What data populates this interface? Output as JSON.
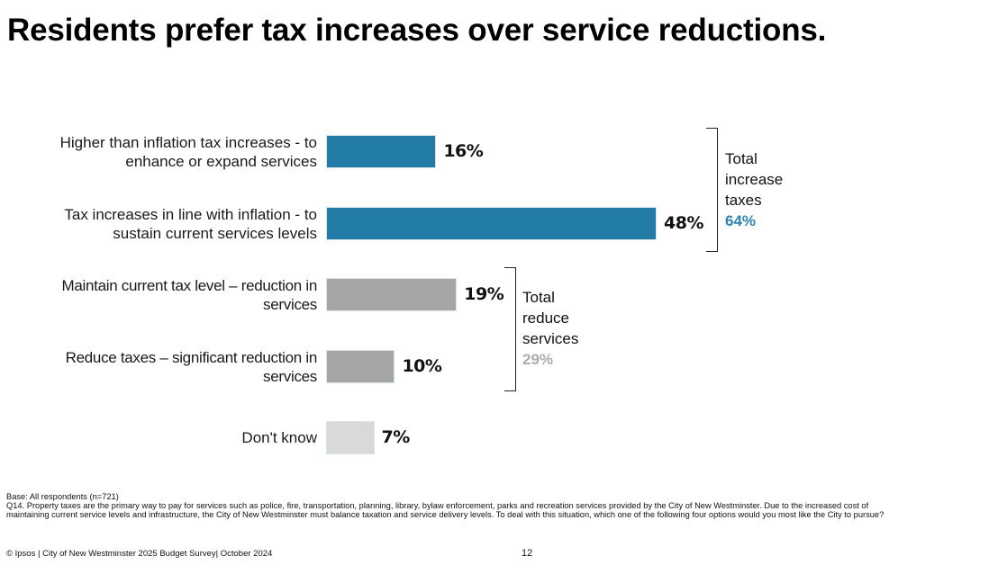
{
  "title": "Residents prefer tax increases over service reductions.",
  "colors": {
    "increase": "#237CA6",
    "reduce": "#A6A6A6",
    "dont_know": "#D9D9D9",
    "increase_total_text": "#2E84B0",
    "reduce_total_text": "#ABABAB"
  },
  "chart_data": {
    "type": "bar",
    "orientation": "horizontal",
    "title": "Residents prefer tax increases over service reductions.",
    "xlabel": "",
    "ylabel": "",
    "xlim": [
      0,
      100
    ],
    "grid": false,
    "categories": [
      [
        "Higher than inflation tax increases - to",
        "enhance or expand services"
      ],
      [
        "Tax increases in line with inflation - to",
        "sustain current services levels"
      ],
      [
        "Maintain current tax level – reduction in",
        "services"
      ],
      [
        "Reduce taxes – significant reduction in",
        "services"
      ],
      [
        "Don't know"
      ]
    ],
    "values": [
      16,
      48,
      19,
      10,
      7
    ],
    "value_labels": [
      "16%",
      "48%",
      "19%",
      "10%",
      "7%"
    ],
    "groups": [
      "increase",
      "increase",
      "reduce",
      "reduce",
      "dont_know"
    ],
    "annotations": [
      {
        "lines": [
          "Total",
          "increase",
          "taxes"
        ],
        "value": "64%",
        "group": "increase",
        "spans": [
          0,
          1
        ]
      },
      {
        "lines": [
          "Total",
          "reduce",
          "services"
        ],
        "value": "29%",
        "group": "reduce",
        "spans": [
          2,
          3
        ]
      }
    ]
  },
  "footnote": {
    "base": "Base: All respondents (n=721)",
    "question_line1": "Q14. Property taxes are the primary way to pay for services such as police, fire, transportation, planning, library, bylaw enforcement, parks and recreation services provided by the City of New Westminster. Due to the increased cost of",
    "question_line2": "maintaining current service levels and infrastructure, the City of New Westminster must balance taxation and service delivery levels. To deal with this situation, which one of the following four options would you most like the City to pursue?"
  },
  "footer": {
    "source": "© Ipsos | City of New Westminster 2025 Budget Survey| October 2024",
    "page_number": "12"
  }
}
